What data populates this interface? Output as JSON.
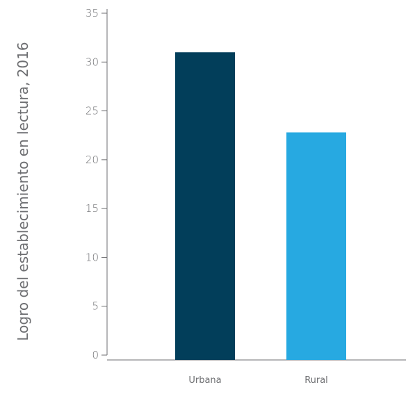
{
  "chart_data": {
    "type": "bar",
    "title": "",
    "xlabel": "",
    "ylabel": "Logro del establecimiento en lectura, 2016",
    "categories": [
      "Urbana",
      "Rural"
    ],
    "values": [
      31,
      22.8
    ],
    "colors": [
      "#023e5a",
      "#27a9e1"
    ],
    "ylim": [
      0,
      35
    ],
    "yticks": [
      0,
      5,
      10,
      15,
      20,
      25,
      30,
      35
    ],
    "grid": false,
    "legend": "none"
  }
}
